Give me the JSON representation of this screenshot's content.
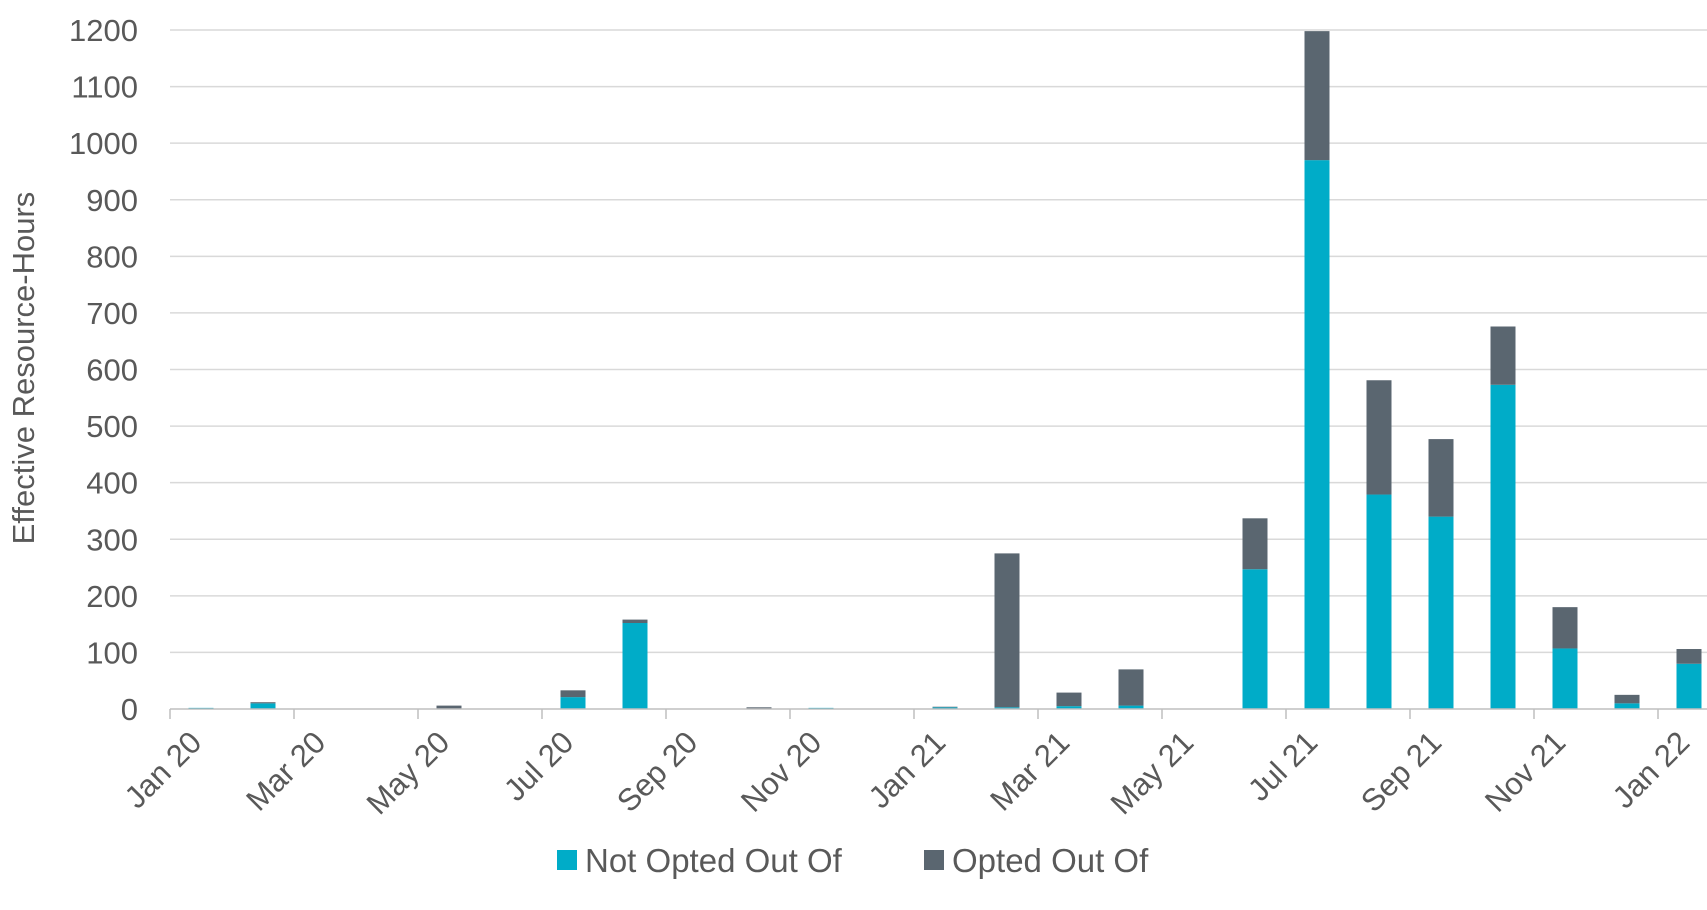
{
  "chart_data": {
    "type": "bar",
    "stacked": true,
    "title": "",
    "xlabel": "",
    "ylabel": "Effective Resource-Hours",
    "ylim": [
      0,
      1200
    ],
    "yticks": [
      0,
      100,
      200,
      300,
      400,
      500,
      600,
      700,
      800,
      900,
      1000,
      1100,
      1200
    ],
    "grid": true,
    "legend_position": "bottom",
    "x_tick_labels": [
      "Jan 20",
      "Mar 20",
      "May 20",
      "Jul 20",
      "Sep 20",
      "Nov 20",
      "Jan 21",
      "Mar 21",
      "May 21",
      "Jul 21",
      "Sep 21",
      "Nov 21",
      "Jan 22"
    ],
    "categories": [
      "Jan 20",
      "Feb 20",
      "Mar 20",
      "Apr 20",
      "May 20",
      "Jun 20",
      "Jul 20",
      "Aug 20",
      "Sep 20",
      "Oct 20",
      "Nov 20",
      "Dec 20",
      "Jan 21",
      "Feb 21",
      "Mar 21",
      "Apr 21",
      "May 21",
      "Jun 21",
      "Jul 21",
      "Aug 21",
      "Sep 21",
      "Oct 21",
      "Nov 21",
      "Dec 21",
      "Jan 22"
    ],
    "series": [
      {
        "name": "Not Opted Out Of",
        "color": "#00ACC8",
        "values": [
          2,
          10,
          0,
          0,
          0,
          0,
          21,
          152,
          0,
          0,
          2,
          0,
          3,
          3,
          5,
          6,
          0,
          247,
          970,
          379,
          340,
          573,
          107,
          10,
          80
        ]
      },
      {
        "name": "Opted Out Of",
        "color": "#5A6670",
        "values": [
          0,
          2,
          0,
          0,
          6,
          0,
          12,
          6,
          0,
          3,
          0,
          0,
          1,
          272,
          24,
          64,
          0,
          90,
          228,
          202,
          137,
          103,
          73,
          15,
          26
        ]
      }
    ]
  }
}
